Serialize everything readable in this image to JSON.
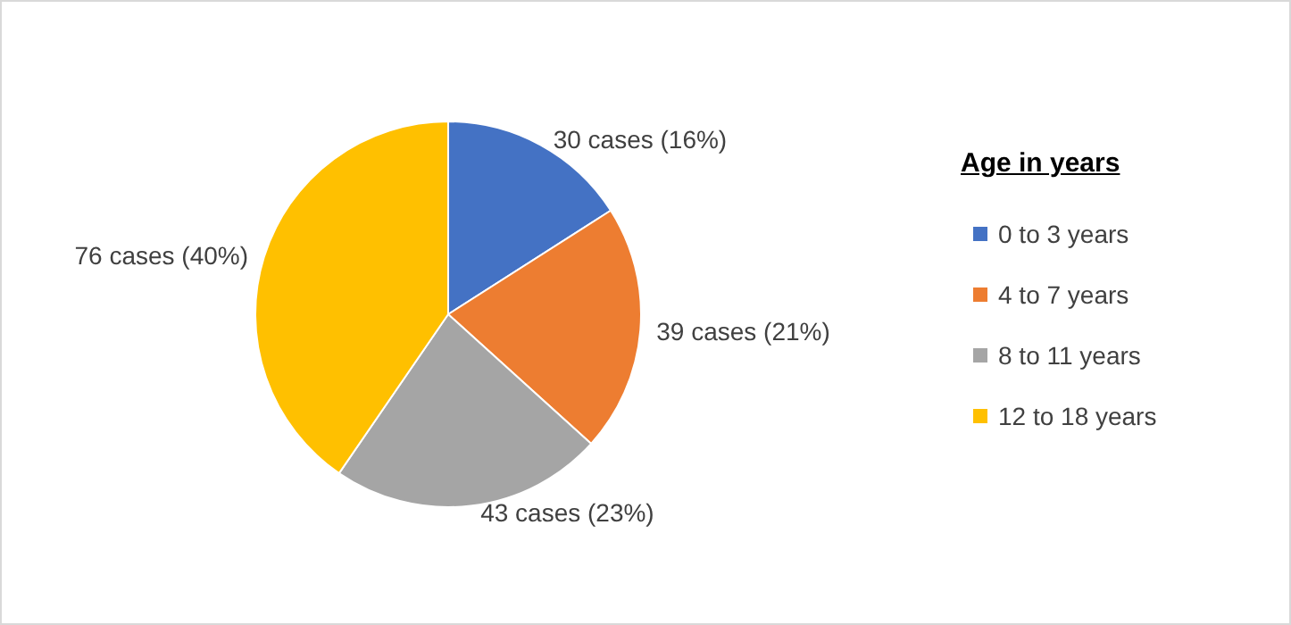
{
  "chart_data": {
    "type": "pie",
    "legend_title": "Age in years",
    "categories": [
      "0 to 3 years",
      "4 to 7 years",
      "8 to 11 years",
      "12 to 18 years"
    ],
    "values": [
      30,
      39,
      43,
      76
    ],
    "colors": [
      "#4472c4",
      "#ed7d31",
      "#a5a5a5",
      "#ffc000"
    ],
    "value_labels": [
      "30 cases (16%)",
      "39 cases (21%)",
      "43 cases (23%)",
      "76 cases (40%)"
    ],
    "legend": "right"
  }
}
